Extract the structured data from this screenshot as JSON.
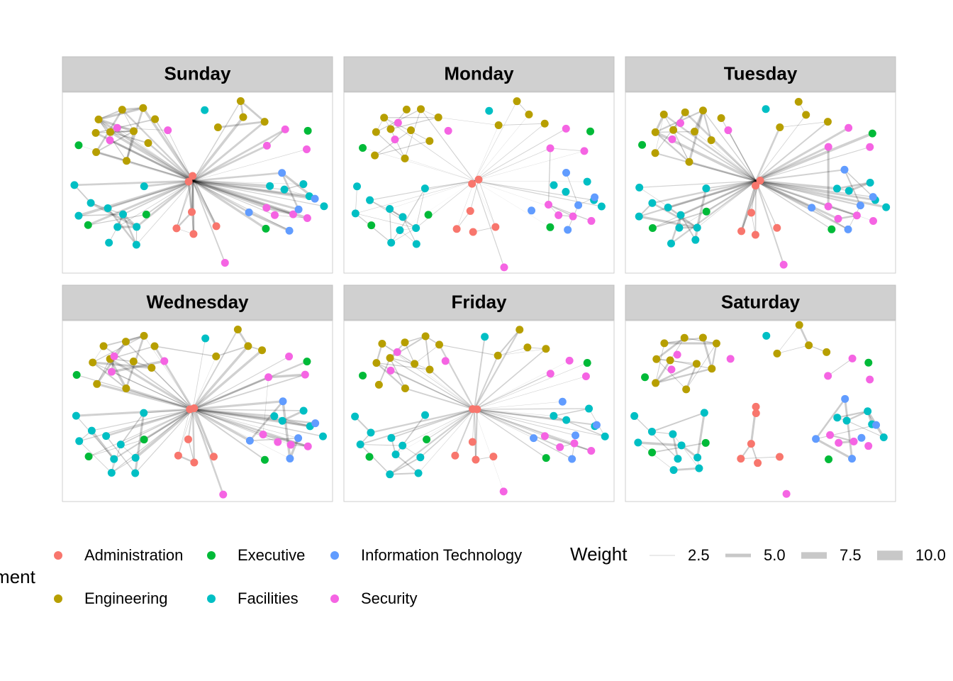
{
  "panels": [
    "Sunday",
    "Monday",
    "Tuesday",
    "Wednesday",
    "Friday",
    "Saturday"
  ],
  "legend": {
    "title": "Department",
    "items": [
      {
        "name": "Administration",
        "color": "#F8766D"
      },
      {
        "name": "Engineering",
        "color": "#B79F00"
      },
      {
        "name": "Executive",
        "color": "#00BA38"
      },
      {
        "name": "Facilities",
        "color": "#00BFC4"
      },
      {
        "name": "Information Technology",
        "color": "#619CFF"
      },
      {
        "name": "Security",
        "color": "#F564E3"
      }
    ]
  },
  "weight_legend": {
    "title": "Weight",
    "keys": [
      {
        "value": 2.5,
        "label": "2.5"
      },
      {
        "value": 5,
        "label": "5.0"
      },
      {
        "value": 7.5,
        "label": "7.5"
      },
      {
        "value": 10,
        "label": "10.0"
      }
    ]
  }
}
